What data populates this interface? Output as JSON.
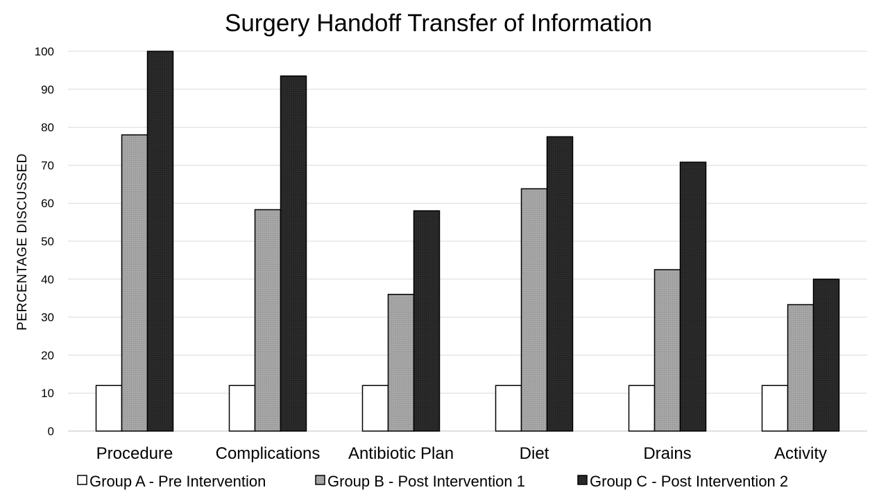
{
  "chart_data": {
    "type": "bar",
    "title": "Surgery Handoff Transfer of Information",
    "xlabel": "",
    "ylabel": "PERCENTAGE  DISCUSSED",
    "ylim": [
      0,
      100
    ],
    "yticks": [
      0,
      10,
      20,
      30,
      40,
      50,
      60,
      70,
      80,
      90,
      100
    ],
    "categories": [
      "Procedure",
      "Complications",
      "Antibiotic Plan",
      "Diet",
      "Drains",
      "Activity"
    ],
    "series": [
      {
        "name": "Group A - Pre Intervention",
        "values": [
          12,
          12,
          12,
          12,
          12,
          12
        ],
        "color": "#ffffff"
      },
      {
        "name": "Group B - Post Intervention 1",
        "values": [
          78,
          58.3,
          36,
          63.8,
          42.5,
          33.3
        ],
        "color": "#a6a6a6"
      },
      {
        "name": "Group C - Post Intervention 2",
        "values": [
          100,
          93.5,
          58,
          77.5,
          70.8,
          40
        ],
        "color": "#262626"
      }
    ],
    "grid": true,
    "legend_position": "bottom"
  }
}
